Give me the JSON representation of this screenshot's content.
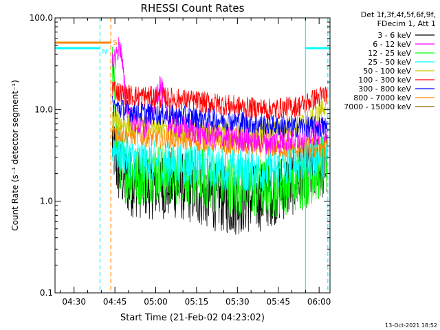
{
  "chart_data": {
    "type": "line",
    "title": "RHESSI Count Rates",
    "xlabel": "Start Time (21-Feb-02 04:23:02)",
    "ylabel": "Count Rate (s⁻¹ detector segment⁻¹)",
    "yscale": "log",
    "ylim": [
      0.1,
      100
    ],
    "xlim_minutes_after_0423": [
      0,
      101
    ],
    "y_ticks": [
      {
        "value": 0.1,
        "label": "0.1"
      },
      {
        "value": 1,
        "label": "1.0"
      },
      {
        "value": 10,
        "label": "10.0"
      },
      {
        "value": 100,
        "label": "100.0"
      }
    ],
    "x_ticks": [
      {
        "label": "04:30",
        "minute": 7
      },
      {
        "label": "04:45",
        "minute": 22
      },
      {
        "label": "05:00",
        "minute": 37
      },
      {
        "label": "05:15",
        "minute": 52
      },
      {
        "label": "05:30",
        "minute": 67
      },
      {
        "label": "05:45",
        "minute": 82
      },
      {
        "label": "06:00",
        "minute": 97
      }
    ],
    "legend_header": [
      "Det 1f,3f,4f,5f,6f,9f,",
      "FDecim 1, Att 1"
    ],
    "legend_position": "right",
    "series": [
      {
        "name": "3 - 6 keV",
        "color": "#000000",
        "anchors": [
          [
            21,
            4.5
          ],
          [
            23,
            2.2
          ],
          [
            27,
            1.6
          ],
          [
            35,
            1.5
          ],
          [
            45,
            1.5
          ],
          [
            55,
            1.2
          ],
          [
            65,
            1.0
          ],
          [
            75,
            1.1
          ],
          [
            85,
            1.5
          ],
          [
            95,
            2.2
          ],
          [
            100,
            2.5
          ]
        ]
      },
      {
        "name": "6 - 12 keV",
        "color": "#ff00ff",
        "anchors": [
          [
            21,
            30
          ],
          [
            22.5,
            40
          ],
          [
            24,
            52
          ],
          [
            26,
            12
          ],
          [
            28,
            8
          ],
          [
            33,
            6
          ],
          [
            37,
            13
          ],
          [
            38.5,
            20
          ],
          [
            40,
            13
          ],
          [
            42,
            7
          ],
          [
            50,
            6
          ],
          [
            60,
            5
          ],
          [
            70,
            4.7
          ],
          [
            80,
            4.4
          ],
          [
            90,
            5
          ],
          [
            100,
            6
          ]
        ]
      },
      {
        "name": "12 - 25 keV",
        "color": "#00ff00",
        "anchors": [
          [
            21,
            30
          ],
          [
            23,
            3.5
          ],
          [
            26,
            2.0
          ],
          [
            30,
            1.9
          ],
          [
            35,
            2.1
          ],
          [
            40,
            2.0
          ],
          [
            50,
            1.9
          ],
          [
            60,
            1.6
          ],
          [
            70,
            1.4
          ],
          [
            80,
            1.4
          ],
          [
            90,
            1.7
          ],
          [
            100,
            2.5
          ]
        ]
      },
      {
        "name": "25 - 50 keV",
        "color": "#00ffff",
        "anchors": [
          [
            21,
            4
          ],
          [
            23,
            3.5
          ],
          [
            30,
            2.8
          ],
          [
            40,
            2.6
          ],
          [
            50,
            2.5
          ],
          [
            60,
            2.3
          ],
          [
            70,
            2.2
          ],
          [
            80,
            2.2
          ],
          [
            90,
            2.7
          ],
          [
            100,
            3.2
          ]
        ]
      },
      {
        "name": "50 - 100 keV",
        "color": "#cccc00",
        "anchors": [
          [
            21,
            8
          ],
          [
            25,
            7
          ],
          [
            35,
            6.5
          ],
          [
            45,
            6.0
          ],
          [
            55,
            5.8
          ],
          [
            65,
            5.6
          ],
          [
            75,
            5.5
          ],
          [
            85,
            6
          ],
          [
            95,
            8
          ],
          [
            100,
            12
          ]
        ]
      },
      {
        "name": "100 - 300 keV",
        "color": "#ff0000",
        "anchors": [
          [
            21,
            18
          ],
          [
            24,
            15
          ],
          [
            30,
            14
          ],
          [
            40,
            13.5
          ],
          [
            50,
            12.5
          ],
          [
            60,
            11.5
          ],
          [
            70,
            10.5
          ],
          [
            80,
            10
          ],
          [
            90,
            11
          ],
          [
            100,
            15
          ]
        ]
      },
      {
        "name": "300 - 800 keV",
        "color": "#0000ff",
        "anchors": [
          [
            21,
            11
          ],
          [
            25,
            10
          ],
          [
            35,
            9
          ],
          [
            45,
            8.5
          ],
          [
            55,
            8
          ],
          [
            65,
            7.5
          ],
          [
            75,
            7
          ],
          [
            85,
            6.5
          ],
          [
            95,
            6.5
          ],
          [
            100,
            6.5
          ]
        ]
      },
      {
        "name": "800 - 7000 keV",
        "color": "#ff8800",
        "anchors": [
          [
            21,
            6
          ],
          [
            25,
            5.5
          ],
          [
            35,
            5
          ],
          [
            45,
            4.8
          ],
          [
            55,
            4.5
          ],
          [
            65,
            4.2
          ],
          [
            75,
            4
          ],
          [
            85,
            3.8
          ],
          [
            95,
            3.8
          ],
          [
            100,
            4
          ]
        ]
      },
      {
        "name": "7000 - 15000 keV",
        "color": "#886600",
        "anchors": []
      }
    ],
    "intervals": [
      {
        "label": "S",
        "color": "#ff8800",
        "level_fraction": 0.91,
        "x_start": 0,
        "x_end": 20.5
      },
      {
        "label": "N",
        "color": "#00ffff",
        "level_fraction": 0.89,
        "x_start": 0,
        "x_end": 16.5
      },
      {
        "label": "",
        "color": "#00ffff",
        "level_fraction": 0.89,
        "x_start": 92,
        "x_end": 101
      }
    ],
    "vlines": [
      {
        "minute": 16.5,
        "color": "#00ffff",
        "style": "dashed"
      },
      {
        "minute": 20.5,
        "color": "#ff8800",
        "style": "dashed"
      },
      {
        "minute": 92,
        "color": "#00ffff",
        "style": "solid"
      },
      {
        "minute": 100.2,
        "color": "#00ffff",
        "style": "dashed"
      }
    ],
    "footer": "13-Oct-2021 18:52"
  }
}
